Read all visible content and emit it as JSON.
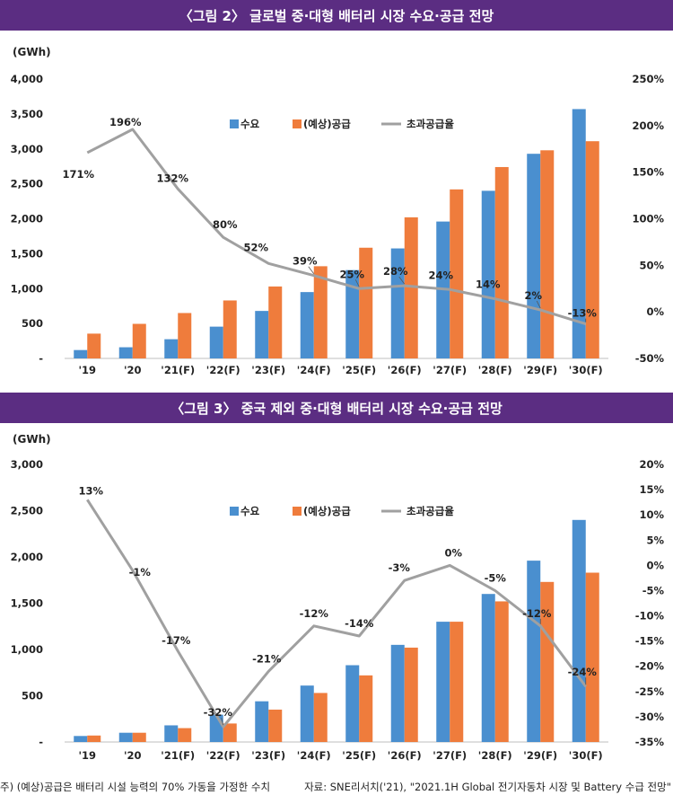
{
  "charts": [
    {
      "title": "〈그림 2〉 글로벌 중·대형 배터리 시장 수요·공급 전망",
      "unit": "(GWh)",
      "legend": [
        "수요",
        "(예상)공급",
        "초과공급율"
      ],
      "colors": {
        "demand": "#4a8fcf",
        "supply": "#ef7c3c",
        "rate": "#a0a0a0"
      }
    },
    {
      "title": "〈그림 3〉 중국 제외 중·대형 배터리 시장 수요·공급 전망",
      "unit": "(GWh)",
      "legend": [
        "수요",
        "(예상)공급",
        "초과공급율"
      ],
      "colors": {
        "demand": "#4a8fcf",
        "supply": "#ef7c3c",
        "rate": "#a0a0a0"
      }
    }
  ],
  "chart_data": [
    {
      "type": "bar",
      "title": "〈그림 2〉 글로벌 중·대형 배터리 시장 수요·공급 전망",
      "categories": [
        "'19",
        "'20",
        "'21(F)",
        "'22(F)",
        "'23(F)",
        "'24(F)",
        "'25(F)",
        "'26(F)",
        "'27(F)",
        "'28(F)",
        "'29(F)",
        "'30(F)"
      ],
      "series": [
        {
          "name": "수요",
          "axis": "left",
          "values": [
            120,
            160,
            275,
            455,
            680,
            950,
            1265,
            1575,
            1960,
            2400,
            2930,
            3570
          ]
        },
        {
          "name": "(예상)공급",
          "axis": "left",
          "values": [
            355,
            495,
            650,
            830,
            1030,
            1320,
            1585,
            2020,
            2420,
            2740,
            2980,
            3110
          ]
        },
        {
          "name": "초과공급율",
          "type": "line",
          "axis": "right",
          "values": [
            171,
            196,
            132,
            80,
            52,
            39,
            25,
            28,
            24,
            14,
            2,
            -13
          ],
          "labels": [
            "171%",
            "196%",
            "132%",
            "80%",
            "52%",
            "39%",
            "25%",
            "28%",
            "24%",
            "14%",
            "2%",
            "-13%"
          ]
        }
      ],
      "ylabel": "(GWh)",
      "ylim": [
        0,
        4000
      ],
      "yticks": [
        "-",
        "500",
        "1,000",
        "1,500",
        "2,000",
        "2,500",
        "3,000",
        "3,500",
        "4,000"
      ],
      "y2lim": [
        -50,
        250
      ],
      "y2ticks": [
        "-50%",
        "0%",
        "50%",
        "100%",
        "150%",
        "200%",
        "250%"
      ],
      "legend_position": "top-center",
      "grid": false
    },
    {
      "type": "bar",
      "title": "〈그림 3〉 중국 제외 중·대형 배터리 시장 수요·공급 전망",
      "categories": [
        "'19",
        "'20",
        "'21(F)",
        "'22(F)",
        "'23(F)",
        "'24(F)",
        "'25(F)",
        "'26(F)",
        "'27(F)",
        "'28(F)",
        "'29(F)",
        "'30(F)"
      ],
      "series": [
        {
          "name": "수요",
          "axis": "left",
          "values": [
            65,
            100,
            180,
            295,
            440,
            610,
            830,
            1050,
            1300,
            1600,
            1960,
            2400
          ]
        },
        {
          "name": "(예상)공급",
          "axis": "left",
          "values": [
            70,
            100,
            150,
            200,
            350,
            530,
            720,
            1020,
            1300,
            1520,
            1730,
            1830
          ]
        },
        {
          "name": "초과공급율",
          "type": "line",
          "axis": "right",
          "values": [
            13,
            -1,
            -17,
            -32,
            -21,
            -12,
            -14,
            -3,
            0,
            -5,
            -12,
            -24
          ],
          "labels": [
            "13%",
            "-1%",
            "-17%",
            "-32%",
            "-21%",
            "-12%",
            "-14%",
            "-3%",
            "0%",
            "-5%",
            "-12%",
            "-24%"
          ]
        }
      ],
      "ylabel": "(GWh)",
      "ylim": [
        0,
        3000
      ],
      "yticks": [
        "-",
        "500",
        "1,000",
        "1,500",
        "2,000",
        "2,500",
        "3,000"
      ],
      "y2lim": [
        -35,
        20
      ],
      "y2ticks": [
        "-35%",
        "-30%",
        "-25%",
        "-20%",
        "-15%",
        "-10%",
        "-5%",
        "0%",
        "5%",
        "10%",
        "15%",
        "20%"
      ],
      "legend_position": "top-center",
      "grid": false
    }
  ],
  "footer": {
    "note": "주) (예상)공급은 배터리 시설 능력의 70% 가동을 가정한 수치",
    "source": "자료: SNE리서치('21), \"2021.1H Global 전기자동차 시장 및 Battery 수급 전망\""
  }
}
